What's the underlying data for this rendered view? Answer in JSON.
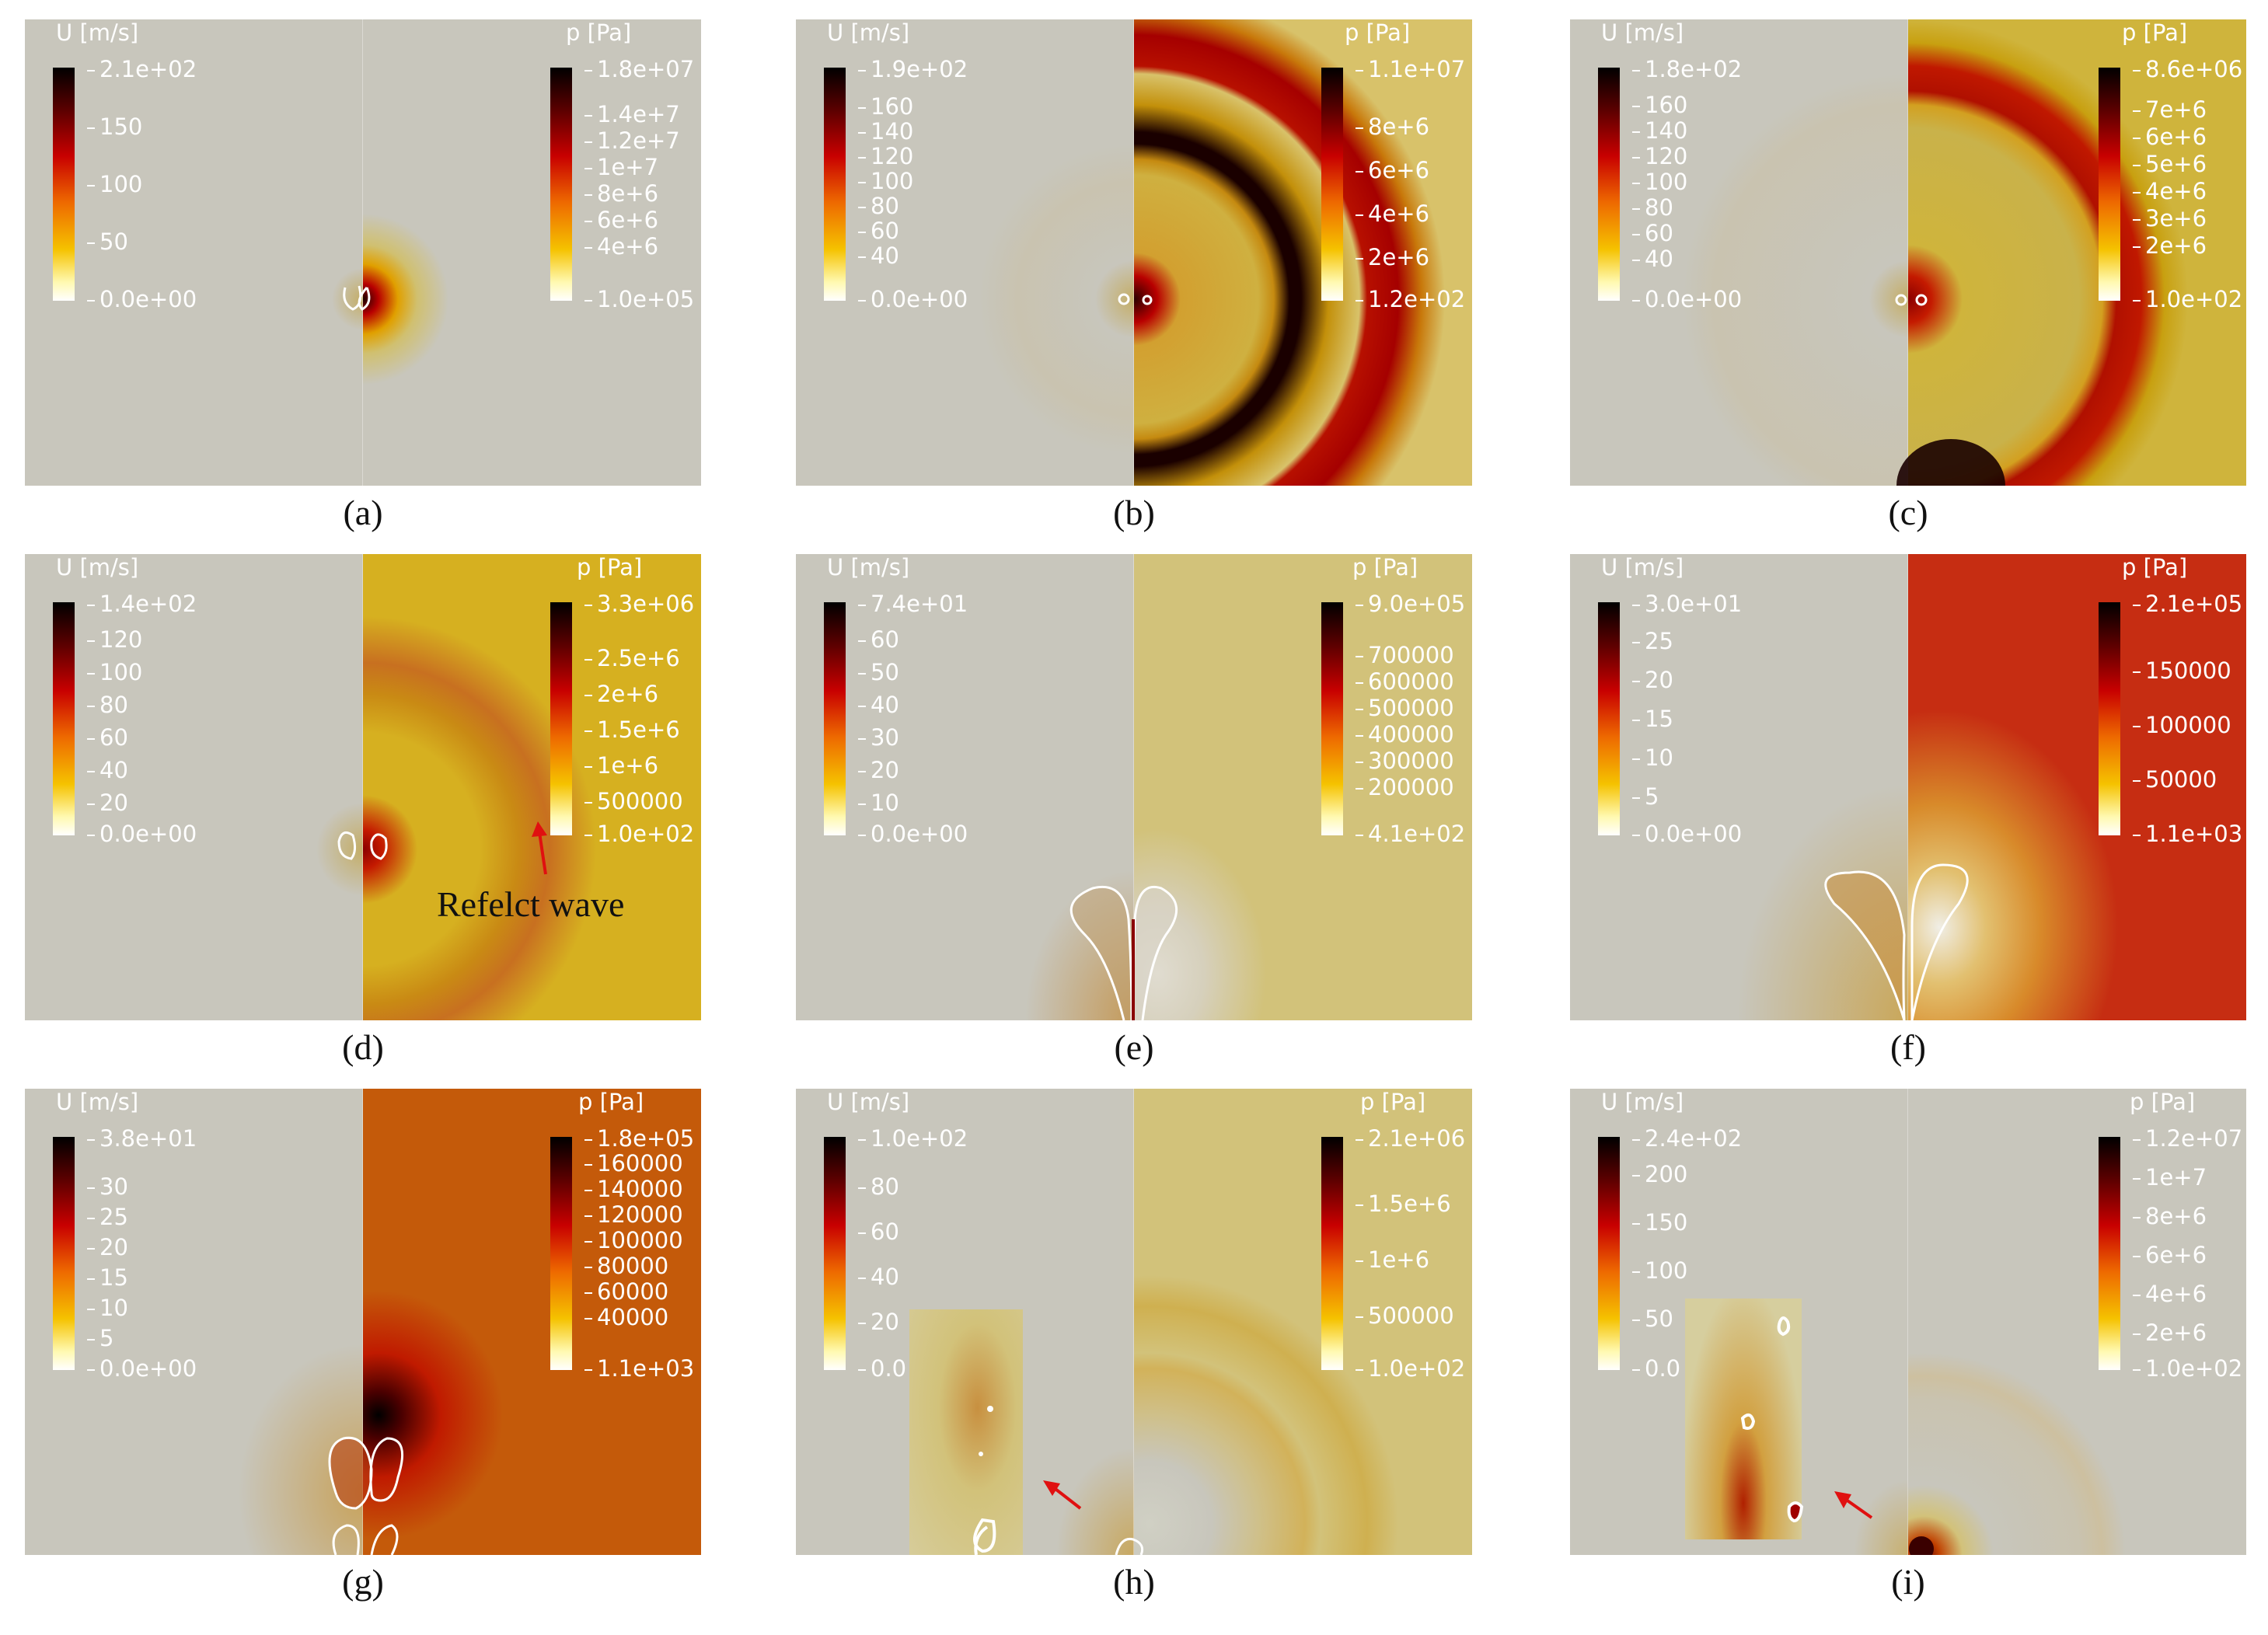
{
  "panels": [
    {
      "caption": "(a)",
      "u_title": "U [m/s]",
      "u_ticks": [
        "2.1e+02",
        "150",
        "100",
        "50",
        "0.0e+00"
      ],
      "p_title": "p [Pa]",
      "p_ticks": [
        "1.8e+07",
        "1.4e+7",
        "1.2e+7",
        "1e+7",
        "8e+6",
        "6e+6",
        "4e+6",
        "1.0e+05"
      ],
      "colors": {
        "left": "#c8c6bc",
        "right": "#c8c6bc"
      }
    },
    {
      "caption": "(b)",
      "u_title": "U [m/s]",
      "u_ticks": [
        "1.9e+02",
        "160",
        "140",
        "120",
        "100",
        "80",
        "60",
        "40",
        "0.0e+00"
      ],
      "p_title": "p [Pa]",
      "p_ticks": [
        "1.1e+07",
        "8e+6",
        "6e+6",
        "4e+6",
        "2e+6",
        "1.2e+02"
      ],
      "colors": {
        "left": "#c8c6bc",
        "right": "#d8c26a"
      }
    },
    {
      "caption": "(c)",
      "u_title": "U [m/s]",
      "u_ticks": [
        "1.8e+02",
        "160",
        "140",
        "120",
        "100",
        "80",
        "60",
        "40",
        "0.0e+00"
      ],
      "p_title": "p [Pa]",
      "p_ticks": [
        "8.6e+06",
        "7e+6",
        "6e+6",
        "5e+6",
        "4e+6",
        "3e+6",
        "2e+6",
        "1.0e+02"
      ],
      "colors": {
        "left": "#c8c6bc",
        "right": "#cfb43c"
      }
    },
    {
      "caption": "(d)",
      "u_title": "U [m/s]",
      "u_ticks": [
        "1.4e+02",
        "120",
        "100",
        "80",
        "60",
        "40",
        "20",
        "0.0e+00"
      ],
      "p_title": "p [Pa]",
      "p_ticks": [
        "3.3e+06",
        "2.5e+6",
        "2e+6",
        "1.5e+6",
        "1e+6",
        "500000",
        "1.0e+02"
      ],
      "annotation": "Refelct wave",
      "colors": {
        "left": "#c8c6bc",
        "right": "#d6b020"
      }
    },
    {
      "caption": "(e)",
      "u_title": "U [m/s]",
      "u_ticks": [
        "7.4e+01",
        "60",
        "50",
        "40",
        "30",
        "20",
        "10",
        "0.0e+00"
      ],
      "p_title": "p [Pa]",
      "p_ticks": [
        "9.0e+05",
        "700000",
        "600000",
        "500000",
        "400000",
        "300000",
        "200000",
        "4.1e+02"
      ],
      "colors": {
        "left": "#c8c6bc",
        "right": "#d2c27a"
      }
    },
    {
      "caption": "(f)",
      "u_title": "U [m/s]",
      "u_ticks": [
        "3.0e+01",
        "25",
        "20",
        "15",
        "10",
        "5",
        "0.0e+00"
      ],
      "p_title": "p [Pa]",
      "p_ticks": [
        "2.1e+05",
        "150000",
        "100000",
        "50000",
        "1.1e+03"
      ],
      "colors": {
        "left": "#c8c6bc",
        "right": "#c62d12"
      }
    },
    {
      "caption": "(g)",
      "u_title": "U [m/s]",
      "u_ticks": [
        "3.8e+01",
        "30",
        "25",
        "20",
        "15",
        "10",
        "5",
        "0.0e+00"
      ],
      "p_title": "p [Pa]",
      "p_ticks": [
        "1.8e+05",
        "160000",
        "140000",
        "120000",
        "100000",
        "80000",
        "60000",
        "40000",
        "1.1e+03"
      ],
      "colors": {
        "left": "#c8c6bc",
        "right": "#c45a0a"
      }
    },
    {
      "caption": "(h)",
      "u_title": "U [m/s]",
      "u_ticks": [
        "1.0e+02",
        "80",
        "60",
        "40",
        "20",
        "0.0"
      ],
      "p_title": "p [Pa]",
      "p_ticks": [
        "2.1e+06",
        "1.5e+6",
        "1e+6",
        "500000",
        "1.0e+02"
      ],
      "colors": {
        "left": "#c8c6bc",
        "right": "#d2c27a"
      }
    },
    {
      "caption": "(i)",
      "u_title": "U [m/s]",
      "u_ticks": [
        "2.4e+02",
        "200",
        "150",
        "100",
        "50",
        "0.0"
      ],
      "p_title": "p [Pa]",
      "p_ticks": [
        "1.2e+07",
        "1e+7",
        "8e+6",
        "6e+6",
        "4e+6",
        "2e+6",
        "1.0e+02"
      ],
      "colors": {
        "left": "#c8c6bc",
        "right": "#c8c6bc"
      }
    }
  ]
}
